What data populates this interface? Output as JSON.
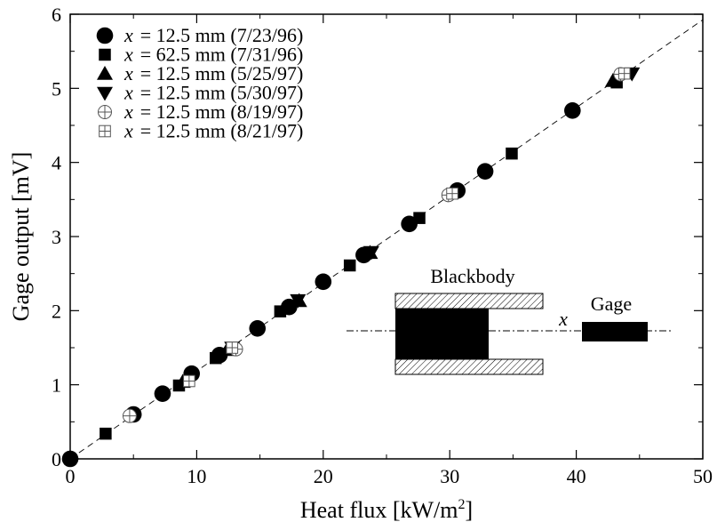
{
  "chart_data": {
    "type": "scatter",
    "xlabel": "Heat flux [kW/m²]",
    "xlabel_main": "Heat flux [kW/m",
    "xlabel_sup": "2",
    "xlabel_end": "]",
    "ylabel": "Gage output [mV]",
    "xlim": [
      0,
      50
    ],
    "ylim": [
      0,
      6
    ],
    "xticks": [
      0,
      10,
      20,
      30,
      40,
      50
    ],
    "yticks": [
      0,
      1,
      2,
      3,
      4,
      5,
      6
    ],
    "grid": false,
    "legend_position": "top-left",
    "fit_line": {
      "style": "dashed",
      "slope": 0.1185,
      "intercept": 0
    },
    "series": [
      {
        "name": "x = 12.5 mm (7/23/96)",
        "label_var": "x",
        "label_rest": "= 12.5 mm (7/23/96)",
        "marker": "circle",
        "x": [
          0,
          5.0,
          7.3,
          9.6,
          11.8,
          14.8,
          17.3,
          20.0,
          23.2,
          26.8,
          30.6,
          32.8,
          39.7
        ],
        "y": [
          0,
          0.6,
          0.88,
          1.15,
          1.4,
          1.76,
          2.05,
          2.39,
          2.75,
          3.17,
          3.62,
          3.88,
          4.7
        ]
      },
      {
        "name": "x = 62.5 mm (7/31/96)",
        "label_var": "x",
        "label_rest": "= 62.5 mm (7/31/96)",
        "marker": "square",
        "x": [
          2.8,
          8.6,
          11.5,
          16.6,
          22.1,
          27.6,
          34.9,
          43.2
        ],
        "y": [
          0.34,
          0.99,
          1.36,
          1.99,
          2.61,
          3.25,
          4.12,
          5.08
        ]
      },
      {
        "name": "x = 12.5 mm (5/25/97)",
        "label_var": "x",
        "label_rest": "= 12.5 mm (5/25/97)",
        "marker": "triangle-up",
        "x": [
          8.9,
          12.4,
          18.1,
          23.7,
          42.9
        ],
        "y": [
          1.04,
          1.47,
          2.13,
          2.78,
          5.1
        ]
      },
      {
        "name": "x = 12.5 mm (5/30/97)",
        "label_var": "x",
        "label_rest": "= 12.5 mm (5/30/97)",
        "marker": "triangle-down",
        "x": [
          12.8,
          18.0,
          23.8,
          44.4
        ],
        "y": [
          1.5,
          2.14,
          2.79,
          5.2
        ]
      },
      {
        "name": "x = 12.5 mm (8/19/97)",
        "label_var": "x",
        "label_rest": "= 12.5 mm (8/19/97)",
        "marker": "circle-plus",
        "x": [
          4.7,
          13.1,
          29.9,
          43.5
        ],
        "y": [
          0.58,
          1.48,
          3.56,
          5.19
        ]
      },
      {
        "name": "x = 12.5 mm (8/21/97)",
        "label_var": "x",
        "label_rest": "= 12.5 mm (8/21/97)",
        "marker": "square-plus",
        "x": [
          9.4,
          12.8,
          30.2,
          43.8
        ],
        "y": [
          1.05,
          1.5,
          3.58,
          5.2
        ]
      }
    ],
    "inset": {
      "blackbody_label": "Blackbody",
      "gage_label": "Gage",
      "distance_label": "x"
    }
  }
}
